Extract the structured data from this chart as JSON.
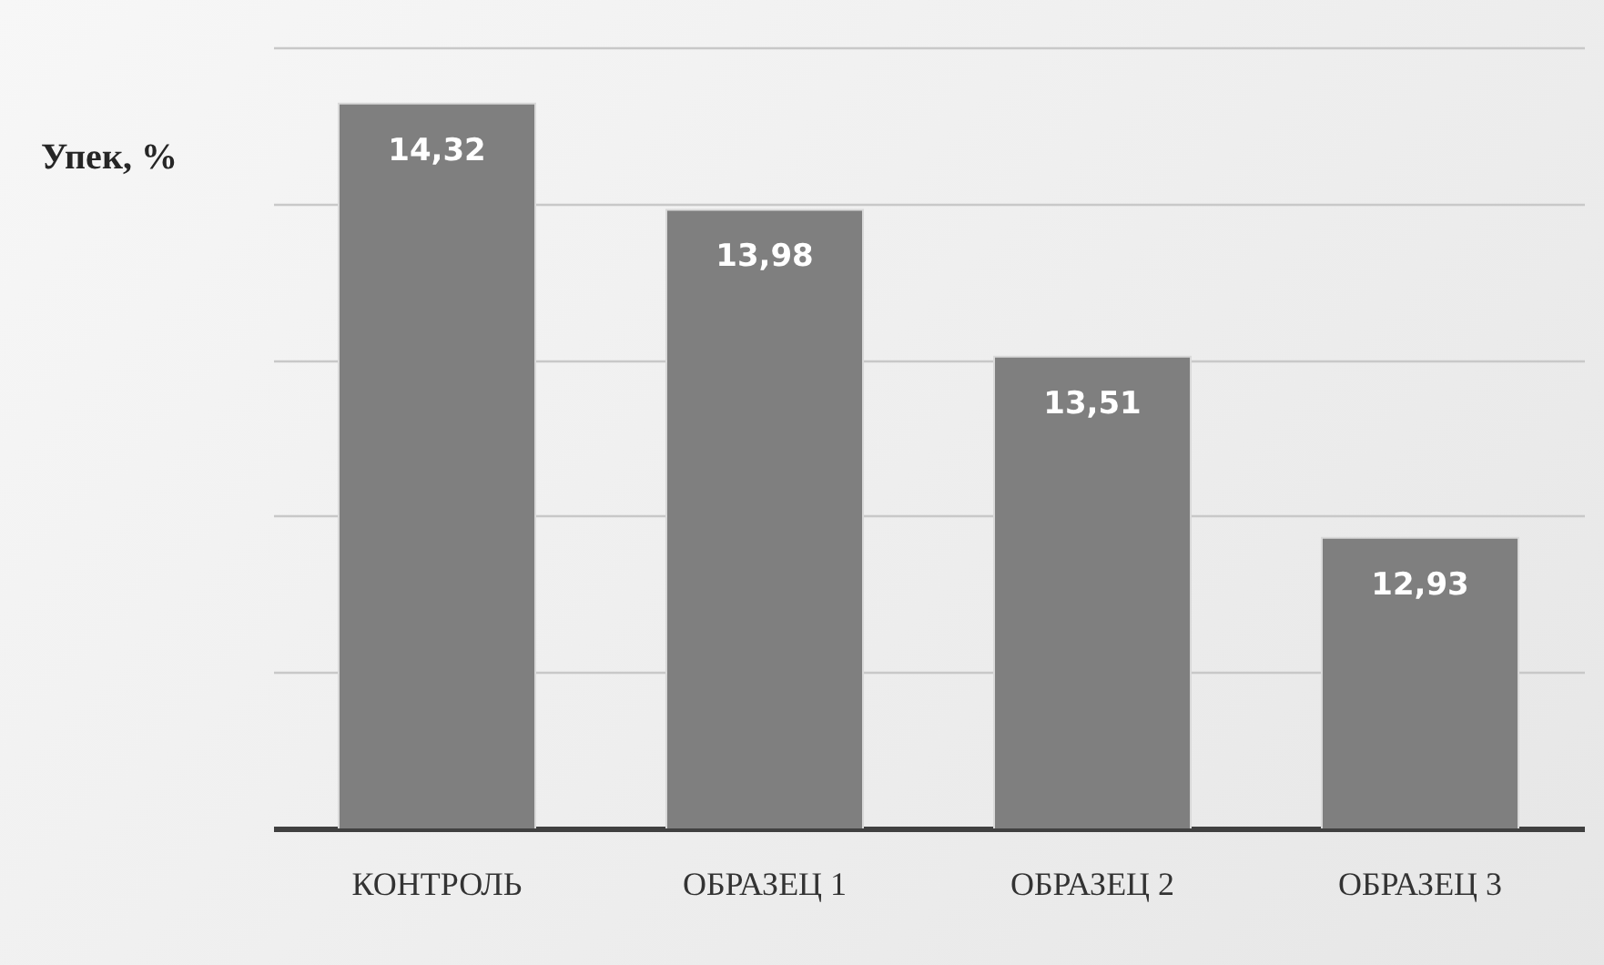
{
  "chart_data": {
    "type": "bar",
    "ylabel": "Упек, %",
    "categories": [
      "КОНТРОЛЬ",
      "ОБРАЗЕЦ 1",
      "ОБРАЗЕЦ 2",
      "ОБРАЗЕЦ 3"
    ],
    "values": [
      14.32,
      13.98,
      13.51,
      12.93
    ],
    "value_labels": [
      "14,32",
      "13,98",
      "13,51",
      "12,93"
    ],
    "color": "#7f7f7f",
    "ylim": [
      12,
      14.5
    ],
    "yticks": [
      {
        "value": 12,
        "label": null
      },
      {
        "value": 12.5,
        "label": null
      },
      {
        "value": 13,
        "label": null
      },
      {
        "value": 13.5,
        "label": null
      },
      {
        "value": 14,
        "label": null
      },
      {
        "value": 14.5,
        "label": null
      }
    ],
    "grid": "y"
  }
}
